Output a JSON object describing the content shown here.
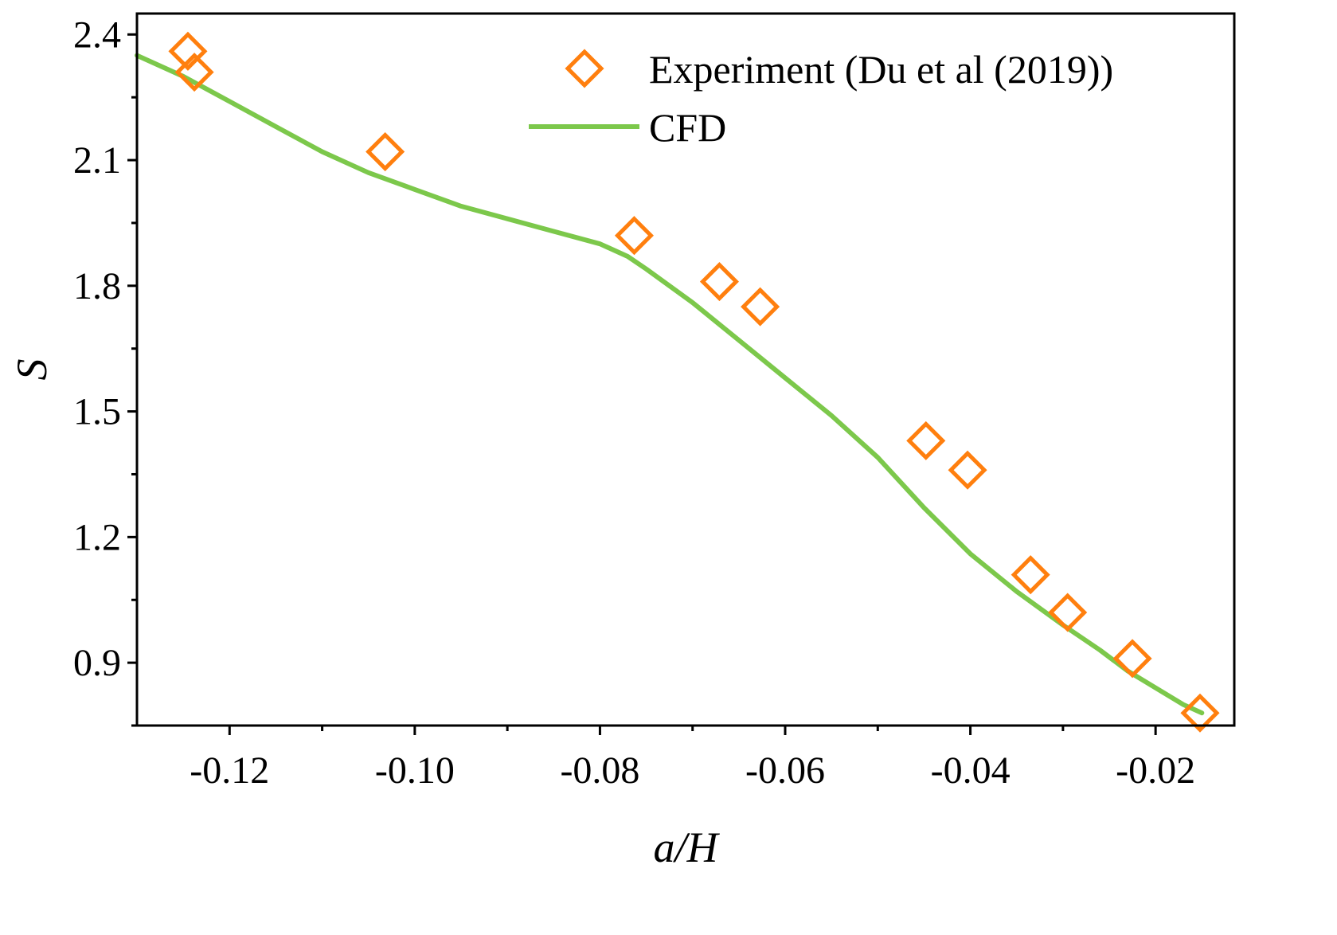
{
  "chart_data": {
    "type": "scatter",
    "title": "",
    "xlabel": "a/H",
    "ylabel": "S",
    "xlim": [
      -0.13,
      -0.0115
    ],
    "ylim": [
      0.75,
      2.45
    ],
    "xticks": [
      -0.12,
      -0.1,
      -0.08,
      -0.06,
      -0.04,
      -0.02
    ],
    "xtick_labels": [
      "-0.12",
      "-0.10",
      "-0.08",
      "-0.06",
      "-0.04",
      "-0.02"
    ],
    "yticks": [
      0.9,
      1.2,
      1.5,
      1.8,
      2.1,
      2.4
    ],
    "ytick_labels": [
      "0.9",
      "1.2",
      "1.5",
      "1.8",
      "2.1",
      "2.4"
    ],
    "legend_position": "top-right",
    "series": [
      {
        "name": "Experiment (Du et al (2019))",
        "kind": "scatter",
        "marker": "diamond-open",
        "color": "#ff7f0e",
        "x": [
          -0.1245,
          -0.1238,
          -0.1032,
          -0.0763,
          -0.0671,
          -0.0627,
          -0.0448,
          -0.0403,
          -0.0335,
          -0.0295,
          -0.0225,
          -0.0152
        ],
        "y": [
          2.36,
          2.31,
          2.12,
          1.92,
          1.81,
          1.75,
          1.43,
          1.36,
          1.11,
          1.02,
          0.91,
          0.78
        ]
      },
      {
        "name": "CFD",
        "kind": "line",
        "color": "#7cc84b",
        "x": [
          -0.13,
          -0.125,
          -0.12,
          -0.115,
          -0.11,
          -0.105,
          -0.1,
          -0.095,
          -0.09,
          -0.085,
          -0.08,
          -0.077,
          -0.075,
          -0.07,
          -0.065,
          -0.06,
          -0.055,
          -0.05,
          -0.045,
          -0.04,
          -0.035,
          -0.03,
          -0.026,
          -0.023,
          -0.02,
          -0.017,
          -0.015
        ],
        "y": [
          2.35,
          2.3,
          2.24,
          2.18,
          2.12,
          2.07,
          2.03,
          1.99,
          1.96,
          1.93,
          1.9,
          1.87,
          1.84,
          1.76,
          1.67,
          1.58,
          1.49,
          1.39,
          1.27,
          1.16,
          1.07,
          0.99,
          0.93,
          0.88,
          0.84,
          0.8,
          0.78
        ]
      }
    ]
  }
}
